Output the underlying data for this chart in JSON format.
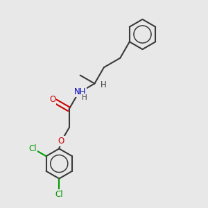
{
  "background_color": "#e8e8e8",
  "bond_color": "#3a3a3a",
  "bond_width": 1.5,
  "atom_colors": {
    "O": "#cc0000",
    "N": "#0000bb",
    "Cl": "#009900",
    "C": "#3a3a3a",
    "H": "#3a3a3a"
  },
  "font_size": 8.5,
  "ring_r": 0.72
}
